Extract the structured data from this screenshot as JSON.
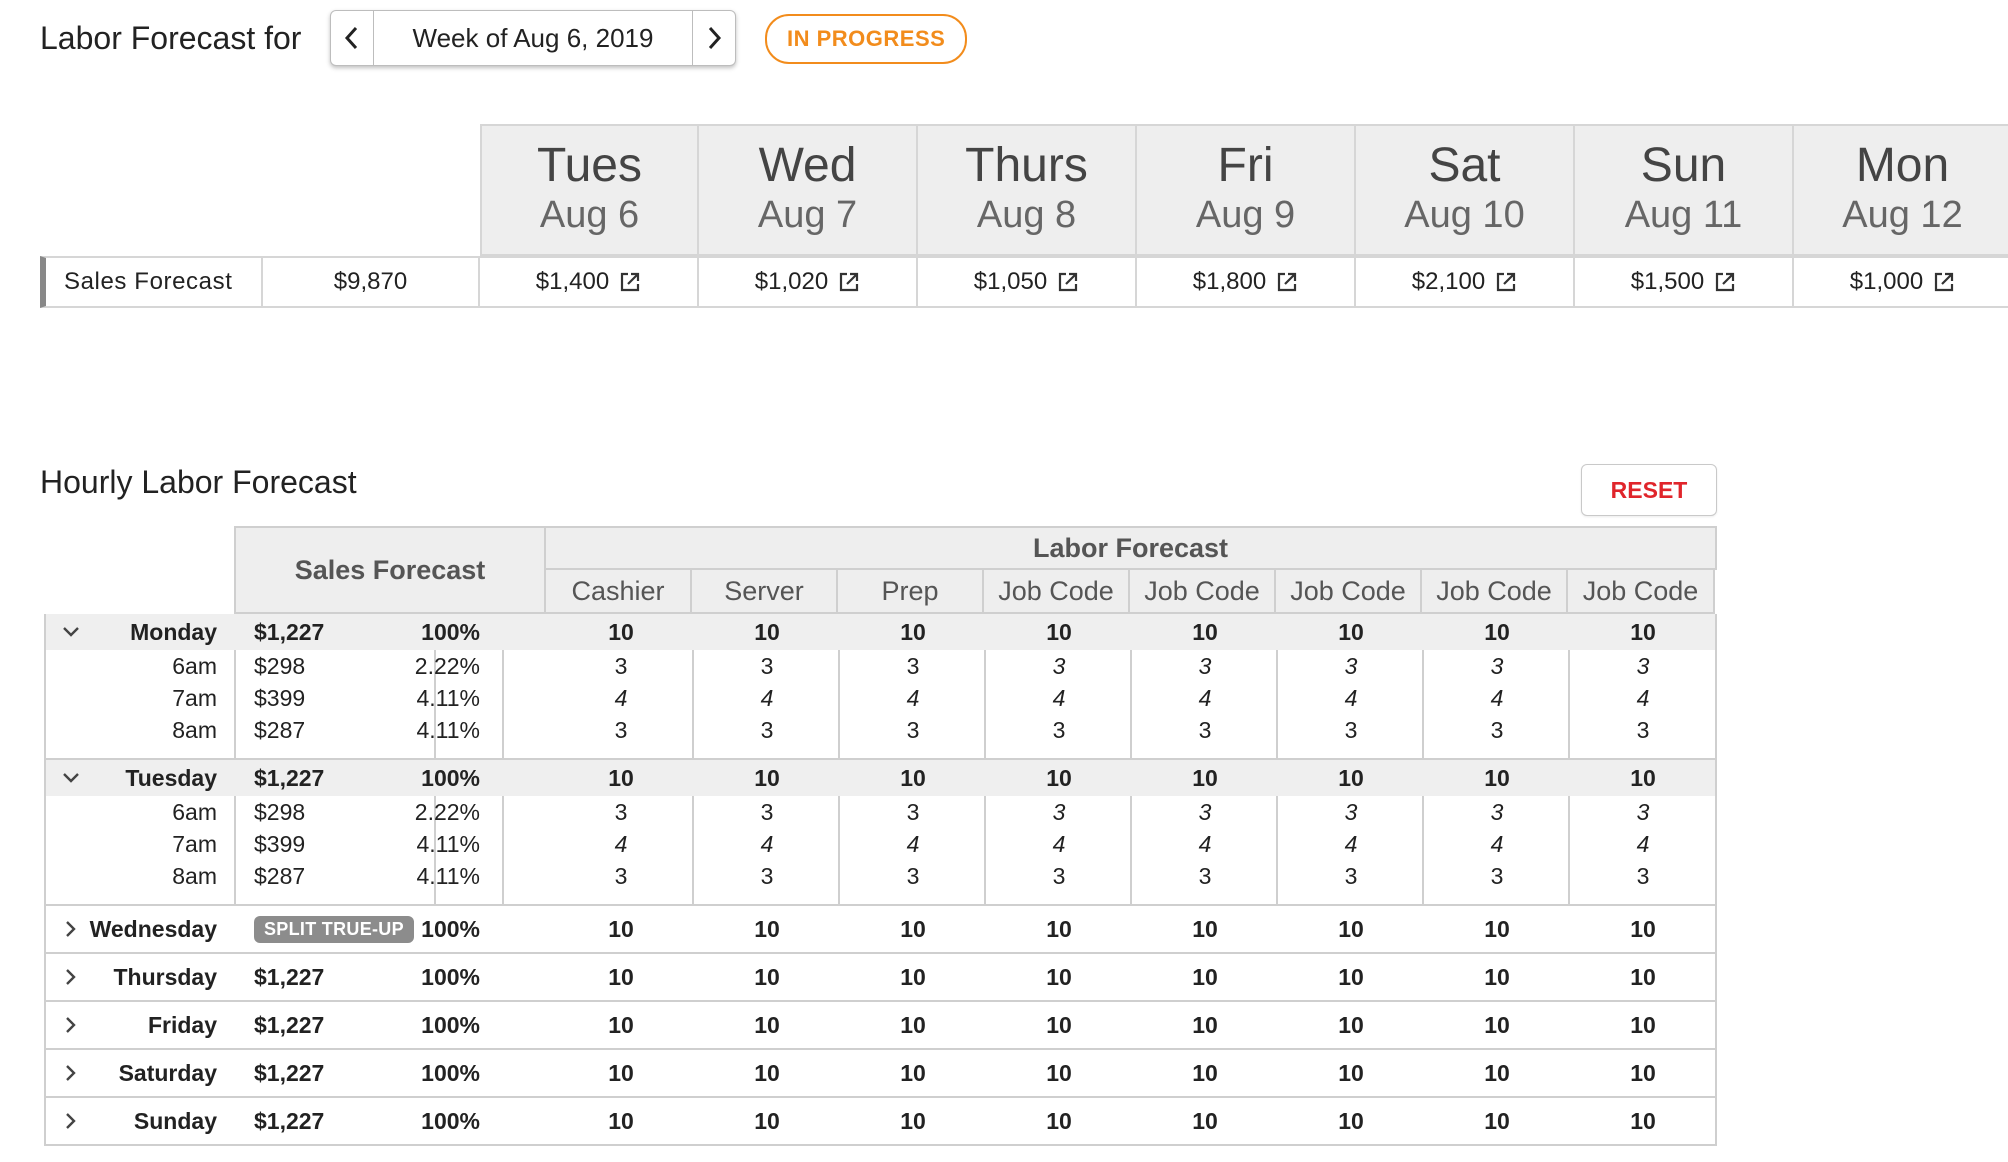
{
  "header": {
    "title": "Labor Forecast for",
    "week_label": "Week of Aug 6, 2019",
    "status": "IN PROGRESS"
  },
  "colors": {
    "accent_orange": "#f28c1c",
    "reset_red": "#e0252b",
    "header_gray": "#eeeeee"
  },
  "weekly": {
    "row_label": "Sales Forecast",
    "total": "$9,870",
    "days": [
      {
        "name": "Tues",
        "date": "Aug 6",
        "value": "$1,400"
      },
      {
        "name": "Wed",
        "date": "Aug 7",
        "value": "$1,020"
      },
      {
        "name": "Thurs",
        "date": "Aug 8",
        "value": "$1,050"
      },
      {
        "name": "Fri",
        "date": "Aug 9",
        "value": "$1,800"
      },
      {
        "name": "Sat",
        "date": "Aug 10",
        "value": "$2,100"
      },
      {
        "name": "Sun",
        "date": "Aug 11",
        "value": "$1,500"
      },
      {
        "name": "Mon",
        "date": "Aug 12",
        "value": "$1,000"
      }
    ]
  },
  "hourly": {
    "title": "Hourly Labor Forecast",
    "reset_label": "RESET",
    "sales_header": "Sales Forecast",
    "labor_header": "Labor Forecast",
    "job_headers": [
      "Cashier",
      "Server",
      "Prep",
      "Job Code",
      "Job Code",
      "Job Code",
      "Job Code",
      "Job Code"
    ],
    "days": [
      {
        "name": "Monday",
        "expanded": true,
        "sales": "$1,227",
        "pct": "100%",
        "values": [
          "10",
          "10",
          "10",
          "10",
          "10",
          "10",
          "10",
          "10"
        ],
        "hours": [
          {
            "label": "6am",
            "sales": "$298",
            "pct": "2.22%",
            "values": [
              "3",
              "3",
              "3",
              "3",
              "3",
              "3",
              "3",
              "3"
            ],
            "italic": [
              false,
              false,
              false,
              true,
              true,
              true,
              true,
              true
            ]
          },
          {
            "label": "7am",
            "sales": "$399",
            "pct": "4.11%",
            "values": [
              "4",
              "4",
              "4",
              "4",
              "4",
              "4",
              "4",
              "4"
            ],
            "italic": [
              true,
              true,
              true,
              true,
              true,
              true,
              true,
              true
            ]
          },
          {
            "label": "8am",
            "sales": "$287",
            "pct": "4.11%",
            "values": [
              "3",
              "3",
              "3",
              "3",
              "3",
              "3",
              "3",
              "3"
            ],
            "italic": [
              false,
              false,
              false,
              false,
              false,
              false,
              false,
              false
            ]
          }
        ]
      },
      {
        "name": "Tuesday",
        "expanded": true,
        "sales": "$1,227",
        "pct": "100%",
        "values": [
          "10",
          "10",
          "10",
          "10",
          "10",
          "10",
          "10",
          "10"
        ],
        "hours": [
          {
            "label": "6am",
            "sales": "$298",
            "pct": "2.22%",
            "values": [
              "3",
              "3",
              "3",
              "3",
              "3",
              "3",
              "3",
              "3"
            ],
            "italic": [
              false,
              false,
              false,
              true,
              true,
              true,
              true,
              true
            ]
          },
          {
            "label": "7am",
            "sales": "$399",
            "pct": "4.11%",
            "values": [
              "4",
              "4",
              "4",
              "4",
              "4",
              "4",
              "4",
              "4"
            ],
            "italic": [
              true,
              true,
              true,
              true,
              true,
              true,
              true,
              true
            ]
          },
          {
            "label": "8am",
            "sales": "$287",
            "pct": "4.11%",
            "values": [
              "3",
              "3",
              "3",
              "3",
              "3",
              "3",
              "3",
              "3"
            ],
            "italic": [
              false,
              false,
              false,
              false,
              false,
              false,
              false,
              false
            ]
          }
        ]
      },
      {
        "name": "Wednesday",
        "expanded": false,
        "sales": "",
        "badge": "SPLIT TRUE-UP",
        "pct": "100%",
        "values": [
          "10",
          "10",
          "10",
          "10",
          "10",
          "10",
          "10",
          "10"
        ]
      },
      {
        "name": "Thursday",
        "expanded": false,
        "sales": "$1,227",
        "pct": "100%",
        "values": [
          "10",
          "10",
          "10",
          "10",
          "10",
          "10",
          "10",
          "10"
        ]
      },
      {
        "name": "Friday",
        "expanded": false,
        "sales": "$1,227",
        "pct": "100%",
        "values": [
          "10",
          "10",
          "10",
          "10",
          "10",
          "10",
          "10",
          "10"
        ]
      },
      {
        "name": "Saturday",
        "expanded": false,
        "sales": "$1,227",
        "pct": "100%",
        "values": [
          "10",
          "10",
          "10",
          "10",
          "10",
          "10",
          "10",
          "10"
        ]
      },
      {
        "name": "Sunday",
        "expanded": false,
        "sales": "$1,227",
        "pct": "100%",
        "values": [
          "10",
          "10",
          "10",
          "10",
          "10",
          "10",
          "10",
          "10"
        ]
      }
    ]
  }
}
